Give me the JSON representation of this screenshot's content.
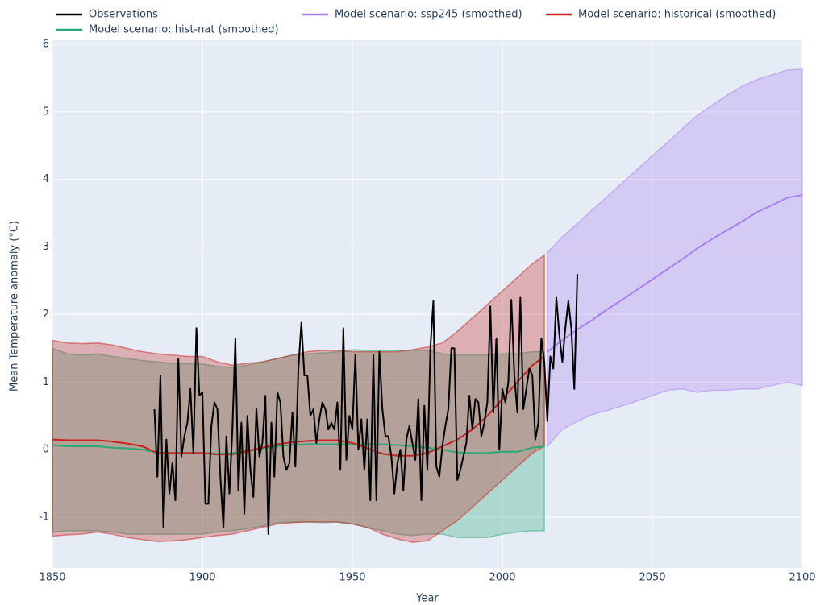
{
  "chart_data": {
    "type": "line",
    "x_label": "Year",
    "y_label": "Mean Temperature anomaly (°C)",
    "xlim": [
      1850,
      2100
    ],
    "ylim": [
      -1.75,
      6
    ],
    "xticks": [
      1850,
      1900,
      1950,
      2000,
      2050,
      2100
    ],
    "yticks": [
      -1,
      0,
      1,
      2,
      3,
      4,
      5,
      6
    ],
    "grid": true,
    "background": "#e5ecf6",
    "legend": "top",
    "series": [
      {
        "name": "Observations",
        "color": "#000000",
        "x": [
          1884,
          1885,
          1886,
          1887,
          1888,
          1889,
          1890,
          1891,
          1892,
          1893,
          1894,
          1895,
          1896,
          1897,
          1898,
          1899,
          1900,
          1901,
          1902,
          1903,
          1904,
          1905,
          1906,
          1907,
          1908,
          1909,
          1910,
          1911,
          1912,
          1913,
          1914,
          1915,
          1916,
          1917,
          1918,
          1919,
          1920,
          1921,
          1922,
          1923,
          1924,
          1925,
          1926,
          1927,
          1928,
          1929,
          1930,
          1931,
          1932,
          1933,
          1934,
          1935,
          1936,
          1937,
          1938,
          1939,
          1940,
          1941,
          1942,
          1943,
          1944,
          1945,
          1946,
          1947,
          1948,
          1949,
          1950,
          1951,
          1952,
          1953,
          1954,
          1955,
          1956,
          1957,
          1958,
          1959,
          1960,
          1961,
          1962,
          1963,
          1964,
          1965,
          1966,
          1967,
          1968,
          1969,
          1970,
          1971,
          1972,
          1973,
          1974,
          1975,
          1976,
          1977,
          1978,
          1979,
          1980,
          1981,
          1982,
          1983,
          1984,
          1985,
          1986,
          1987,
          1988,
          1989,
          1990,
          1991,
          1992,
          1993,
          1994,
          1995,
          1996,
          1997,
          1998,
          1999,
          2000,
          2001,
          2002,
          2003,
          2004,
          2005,
          2006,
          2007,
          2008,
          2009,
          2010,
          2011,
          2012,
          2013,
          2014,
          2015,
          2016,
          2017,
          2018,
          2019,
          2020,
          2021,
          2022,
          2023,
          2024,
          2025
        ],
        "values": [
          0.6,
          -0.4,
          1.1,
          -1.15,
          0.15,
          -0.65,
          -0.2,
          -0.75,
          1.35,
          -0.1,
          0.2,
          0.4,
          0.9,
          -0.05,
          1.8,
          0.8,
          0.85,
          -0.8,
          -0.8,
          0.35,
          0.7,
          0.6,
          -0.4,
          -1.15,
          0.2,
          -0.65,
          0.3,
          1.65,
          -0.6,
          0.4,
          -0.95,
          0.5,
          -0.3,
          -0.7,
          0.6,
          -0.1,
          0.1,
          0.8,
          -1.25,
          0.4,
          -0.4,
          0.85,
          0.7,
          -0.1,
          -0.3,
          -0.2,
          0.55,
          -0.25,
          1.2,
          1.88,
          1.1,
          1.1,
          0.5,
          0.6,
          0.1,
          0.45,
          0.7,
          0.6,
          0.3,
          0.4,
          0.3,
          0.7,
          -0.3,
          1.8,
          -0.15,
          0.5,
          0.3,
          1.4,
          0,
          0.45,
          -0.3,
          0.45,
          -0.75,
          1.4,
          -0.75,
          1.45,
          0.6,
          0.2,
          0.2,
          -0.1,
          -0.65,
          -0.2,
          0,
          -0.6,
          0.15,
          0.35,
          0.1,
          -0.15,
          0.75,
          -0.75,
          0.65,
          -0.3,
          1.5,
          2.2,
          -0.25,
          -0.4,
          0.05,
          0.35,
          0.6,
          1.5,
          1.5,
          -0.45,
          -0.3,
          -0.1,
          0.1,
          0.8,
          0.3,
          0.75,
          0.7,
          0.2,
          0.4,
          0.7,
          2.12,
          0.55,
          1.65,
          0,
          0.9,
          0.7,
          1,
          2.22,
          1.1,
          0.55,
          2.25,
          0.6,
          0.9,
          1.2,
          1.1,
          0.15,
          0.4,
          1.65,
          1.3,
          0.42,
          1.38,
          1.2,
          2.25,
          1.7,
          1.3,
          1.8,
          2.2,
          1.8,
          0.9,
          2.6
        ]
      },
      {
        "name": "Model scenario: ssp245 (smoothed)",
        "color": "#ab7ff0",
        "x": [
          2015,
          2020,
          2025,
          2030,
          2035,
          2040,
          2045,
          2050,
          2055,
          2060,
          2065,
          2070,
          2075,
          2080,
          2085,
          2090,
          2095,
          2100
        ],
        "values": [
          1.45,
          1.62,
          1.78,
          1.92,
          2.08,
          2.22,
          2.37,
          2.52,
          2.67,
          2.82,
          2.98,
          3.12,
          3.25,
          3.38,
          3.52,
          3.62,
          3.73,
          3.77
        ],
        "upper": [
          2.92,
          3.15,
          3.35,
          3.55,
          3.75,
          3.95,
          4.15,
          4.35,
          4.55,
          4.75,
          4.95,
          5.1,
          5.25,
          5.38,
          5.48,
          5.55,
          5.62,
          5.63
        ],
        "lower": [
          0.05,
          0.3,
          0.42,
          0.52,
          0.58,
          0.65,
          0.72,
          0.8,
          0.88,
          0.9,
          0.85,
          0.88,
          0.88,
          0.9,
          0.9,
          0.95,
          1,
          0.95
        ]
      },
      {
        "name": "Model scenario: historical (smoothed)",
        "color": "#c8201c",
        "x": [
          1850,
          1855,
          1860,
          1865,
          1870,
          1875,
          1880,
          1885,
          1890,
          1895,
          1900,
          1905,
          1910,
          1915,
          1920,
          1925,
          1930,
          1935,
          1940,
          1945,
          1950,
          1955,
          1960,
          1965,
          1970,
          1975,
          1980,
          1985,
          1990,
          1995,
          2000,
          2005,
          2010,
          2014
        ],
        "values": [
          0.15,
          0.14,
          0.14,
          0.14,
          0.12,
          0.09,
          0.05,
          -0.05,
          -0.05,
          -0.05,
          -0.05,
          -0.07,
          -0.07,
          -0.02,
          0.03,
          0.08,
          0.11,
          0.13,
          0.14,
          0.14,
          0.1,
          0.02,
          -0.06,
          -0.09,
          -0.09,
          -0.05,
          0.05,
          0.15,
          0.3,
          0.5,
          0.75,
          1,
          1.25,
          1.38
        ],
        "upper": [
          1.62,
          1.58,
          1.57,
          1.58,
          1.55,
          1.5,
          1.45,
          1.42,
          1.4,
          1.38,
          1.38,
          1.3,
          1.25,
          1.28,
          1.3,
          1.35,
          1.4,
          1.45,
          1.47,
          1.47,
          1.45,
          1.45,
          1.45,
          1.45,
          1.48,
          1.52,
          1.58,
          1.75,
          1.95,
          2.15,
          2.35,
          2.55,
          2.75,
          2.88
        ],
        "lower": [
          -1.28,
          -1.26,
          -1.25,
          -1.22,
          -1.25,
          -1.3,
          -1.33,
          -1.36,
          -1.35,
          -1.33,
          -1.3,
          -1.27,
          -1.25,
          -1.2,
          -1.15,
          -1.1,
          -1.08,
          -1.07,
          -1.07,
          -1.07,
          -1.1,
          -1.15,
          -1.25,
          -1.32,
          -1.37,
          -1.35,
          -1.2,
          -1.05,
          -0.85,
          -0.65,
          -0.45,
          -0.25,
          -0.05,
          0.05
        ]
      },
      {
        "name": "Model scenario: hist-nat (smoothed)",
        "color": "#2aa876",
        "x": [
          1850,
          1855,
          1860,
          1865,
          1870,
          1875,
          1880,
          1885,
          1890,
          1895,
          1900,
          1905,
          1910,
          1915,
          1920,
          1925,
          1930,
          1935,
          1940,
          1945,
          1950,
          1955,
          1960,
          1965,
          1970,
          1975,
          1980,
          1985,
          1990,
          1995,
          2000,
          2005,
          2010,
          2014
        ],
        "values": [
          0.07,
          0.05,
          0.05,
          0.05,
          0.03,
          0.02,
          0,
          -0.04,
          -0.05,
          -0.05,
          -0.05,
          -0.06,
          -0.05,
          -0.02,
          0.02,
          0.05,
          0.07,
          0.08,
          0.08,
          0.08,
          0.08,
          0.08,
          0.08,
          0.07,
          0.05,
          0.03,
          0,
          -0.04,
          -0.05,
          -0.05,
          -0.03,
          -0.03,
          0.03,
          0.05
        ],
        "upper": [
          1.5,
          1.42,
          1.4,
          1.42,
          1.38,
          1.35,
          1.32,
          1.3,
          1.28,
          1.27,
          1.27,
          1.23,
          1.22,
          1.25,
          1.3,
          1.35,
          1.4,
          1.42,
          1.43,
          1.45,
          1.48,
          1.47,
          1.47,
          1.47,
          1.47,
          1.47,
          1.42,
          1.4,
          1.4,
          1.4,
          1.42,
          1.42,
          1.45,
          1.45
        ],
        "lower": [
          -1.22,
          -1.2,
          -1.2,
          -1.2,
          -1.22,
          -1.25,
          -1.25,
          -1.25,
          -1.25,
          -1.25,
          -1.25,
          -1.22,
          -1.2,
          -1.17,
          -1.13,
          -1.08,
          -1.07,
          -1.07,
          -1.08,
          -1.07,
          -1.1,
          -1.15,
          -1.2,
          -1.25,
          -1.27,
          -1.25,
          -1.25,
          -1.3,
          -1.3,
          -1.3,
          -1.25,
          -1.22,
          -1.2,
          -1.2
        ]
      }
    ]
  }
}
